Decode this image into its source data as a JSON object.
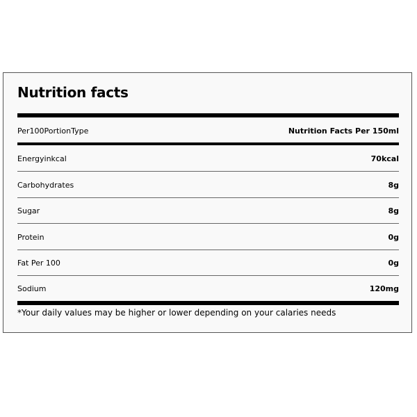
{
  "title": "Nutrition facts",
  "header": {
    "label": "Per100PortionType",
    "value": "Nutrition Facts Per 150ml"
  },
  "rows": [
    {
      "label": "Energyinkcal",
      "value": "70kcal"
    },
    {
      "label": "Carbohydrates",
      "value": "8g"
    },
    {
      "label": "Sugar",
      "value": "8g"
    },
    {
      "label": "Protein",
      "value": "0g"
    },
    {
      "label": "Fat Per 100",
      "value": "0g"
    },
    {
      "label": "Sodium",
      "value": "120mg"
    }
  ],
  "footnote": "*Your daily values may be higher or lower depending on your calaries needs"
}
